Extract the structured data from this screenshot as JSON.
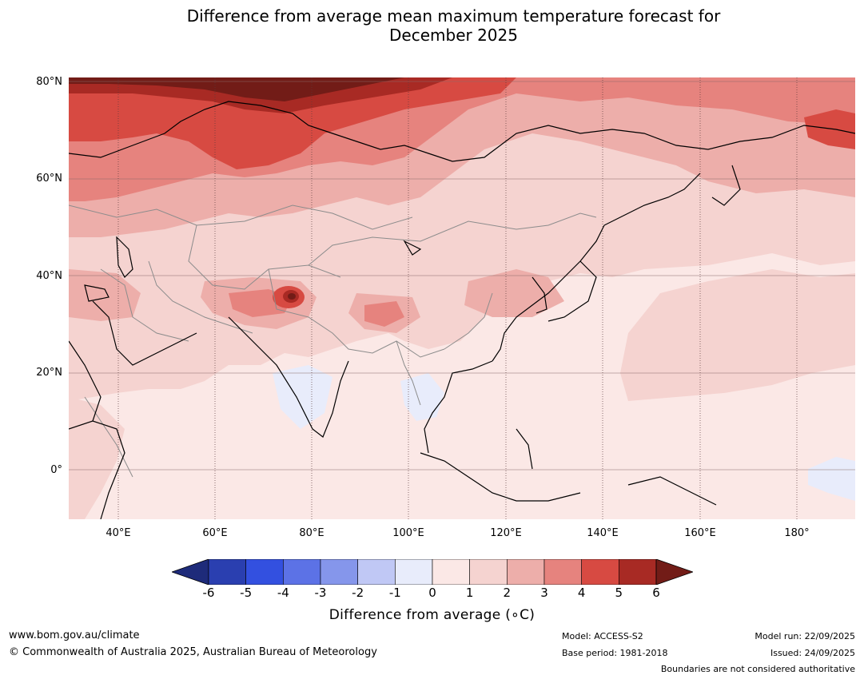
{
  "title": {
    "line1": "Difference from average mean maximum temperature forecast for",
    "line2": "December 2025"
  },
  "map": {
    "lat_labels": [
      "80°N",
      "60°N",
      "40°N",
      "20°N",
      "0°"
    ],
    "lon_labels": [
      "40°E",
      "60°E",
      "80°E",
      "100°E",
      "120°E",
      "140°E",
      "160°E",
      "180°"
    ]
  },
  "colorbar": {
    "ticks": [
      "-6",
      "-5",
      "-4",
      "-3",
      "-2",
      "-1",
      "0",
      "1",
      "2",
      "3",
      "4",
      "5",
      "6"
    ],
    "label": "Difference from average (∘C)",
    "colors": [
      "#1e2b7a",
      "#2a3fb0",
      "#3350e0",
      "#5c72e6",
      "#8596eb",
      "#c0c8f5",
      "#e8ecfb",
      "#fbe8e6",
      "#f5d3d0",
      "#edaeaa",
      "#e6837e",
      "#d74a42",
      "#a82a24",
      "#721c17"
    ]
  },
  "footer": {
    "url": "www.bom.gov.au/climate",
    "copyright": "© Commonwealth of Australia 2025, Australian Bureau of Meteorology",
    "model": "Model: ACCESS-S2",
    "base_period": "Base period: 1981-2018",
    "model_run": "Model run: 22/09/2025",
    "issued": "Issued: 24/09/2025",
    "disclaimer": "Boundaries are not considered authoritative"
  }
}
